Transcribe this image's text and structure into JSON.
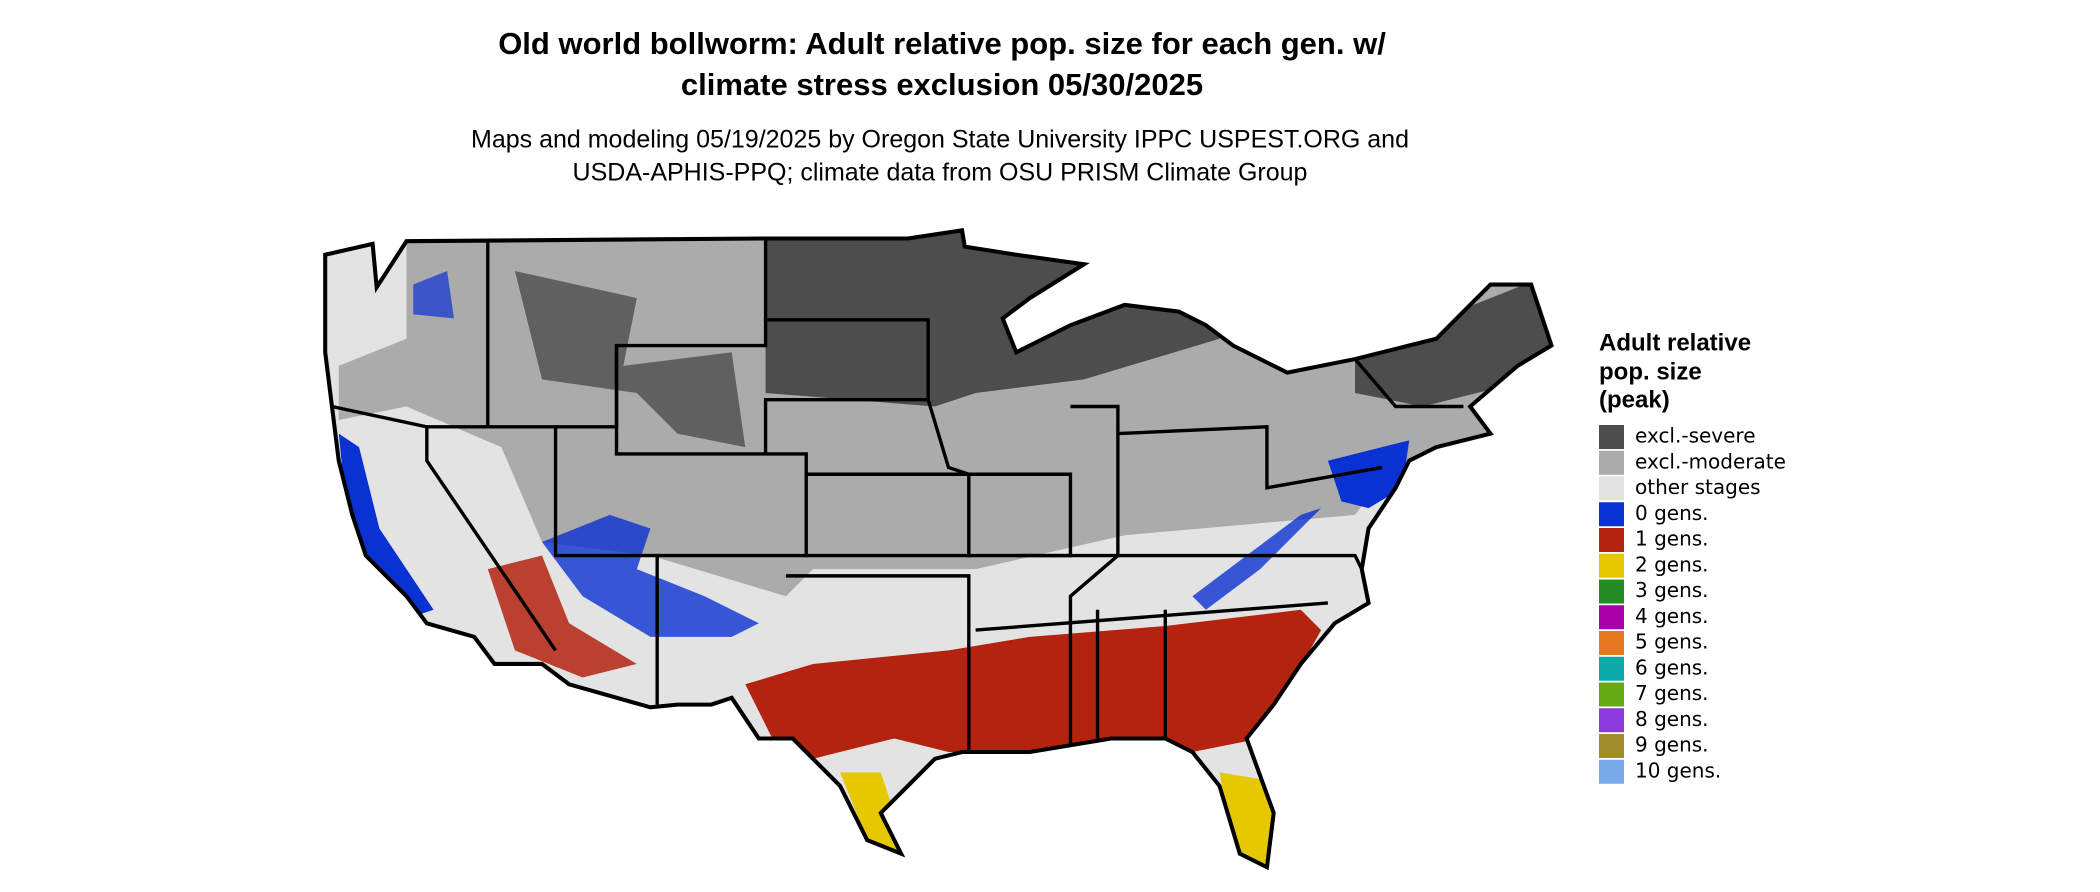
{
  "header": {
    "title": [
      "Old world bollworm: Adult relative pop. size for each gen. w/",
      "climate stress exclusion 05/30/2025"
    ],
    "subtitle": [
      "Maps and modeling 05/19/2025 by Oregon State University IPPC USPEST.ORG and",
      "USDA-APHIS-PPQ; climate data from OSU PRISM Climate Group"
    ]
  },
  "legend": {
    "title": [
      "Adult relative",
      "pop. size",
      "(peak)"
    ],
    "items": [
      {
        "label": "excl.-severe",
        "color": "#4d4d4d"
      },
      {
        "label": "excl.-moderate",
        "color": "#ababab"
      },
      {
        "label": "other stages",
        "color": "#e3e3e3"
      },
      {
        "label": "0 gens.",
        "color": "#0a32d2"
      },
      {
        "label": "1 gens.",
        "color": "#b4230f"
      },
      {
        "label": "2 gens.",
        "color": "#e6c800"
      },
      {
        "label": "3 gens.",
        "color": "#238c23"
      },
      {
        "label": "4 gens.",
        "color": "#aa00aa"
      },
      {
        "label": "5 gens.",
        "color": "#e6781e"
      },
      {
        "label": "6 gens.",
        "color": "#0aaaaa"
      },
      {
        "label": "7 gens.",
        "color": "#64aa14"
      },
      {
        "label": "8 gens.",
        "color": "#8c3cdc"
      },
      {
        "label": "9 gens.",
        "color": "#a08c28"
      },
      {
        "label": "10 gens.",
        "color": "#78aaeb"
      }
    ]
  }
}
